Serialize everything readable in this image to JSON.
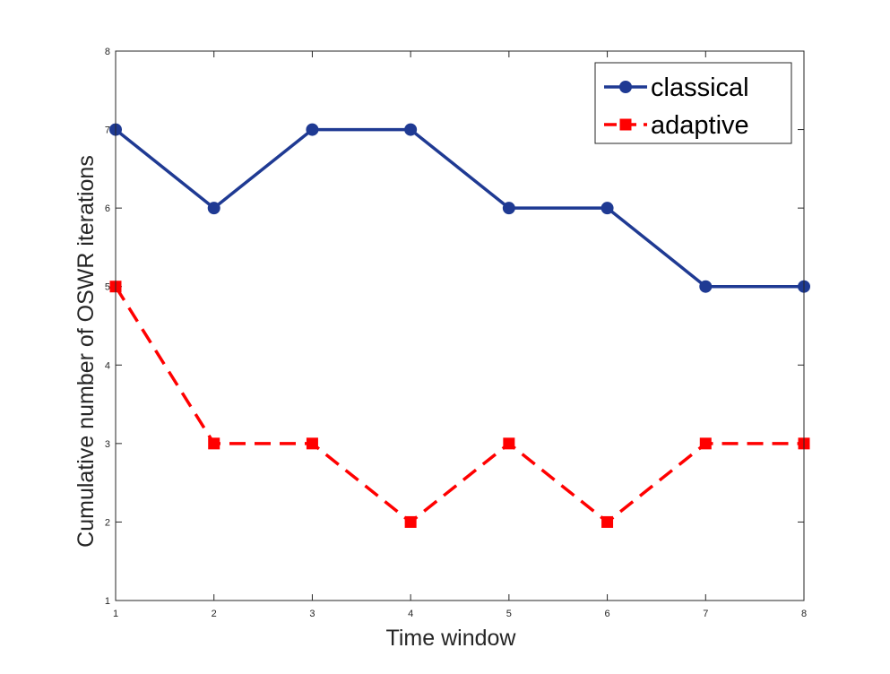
{
  "chart_data": {
    "type": "line",
    "xlabel": "Time window",
    "ylabel": "Cumulative number of OSWR iterations",
    "xlim": [
      1,
      8
    ],
    "ylim": [
      1,
      8
    ],
    "xticks": [
      "1",
      "2",
      "3",
      "4",
      "5",
      "6",
      "7",
      "8"
    ],
    "yticks": [
      "1",
      "2",
      "3",
      "4",
      "5",
      "6",
      "7",
      "8"
    ],
    "grid": false,
    "legend_position": "top-right",
    "x": [
      1,
      2,
      3,
      4,
      5,
      6,
      7,
      8
    ],
    "series": [
      {
        "name": "classical",
        "values": [
          7,
          6,
          7,
          7,
          6,
          6,
          5,
          5
        ],
        "color": "#1f3a93",
        "line_style": "solid",
        "marker": "circle"
      },
      {
        "name": "adaptive",
        "values": [
          5,
          3,
          3,
          2,
          3,
          2,
          3,
          3
        ],
        "color": "#ff0000",
        "line_style": "dashed",
        "marker": "square"
      }
    ]
  }
}
